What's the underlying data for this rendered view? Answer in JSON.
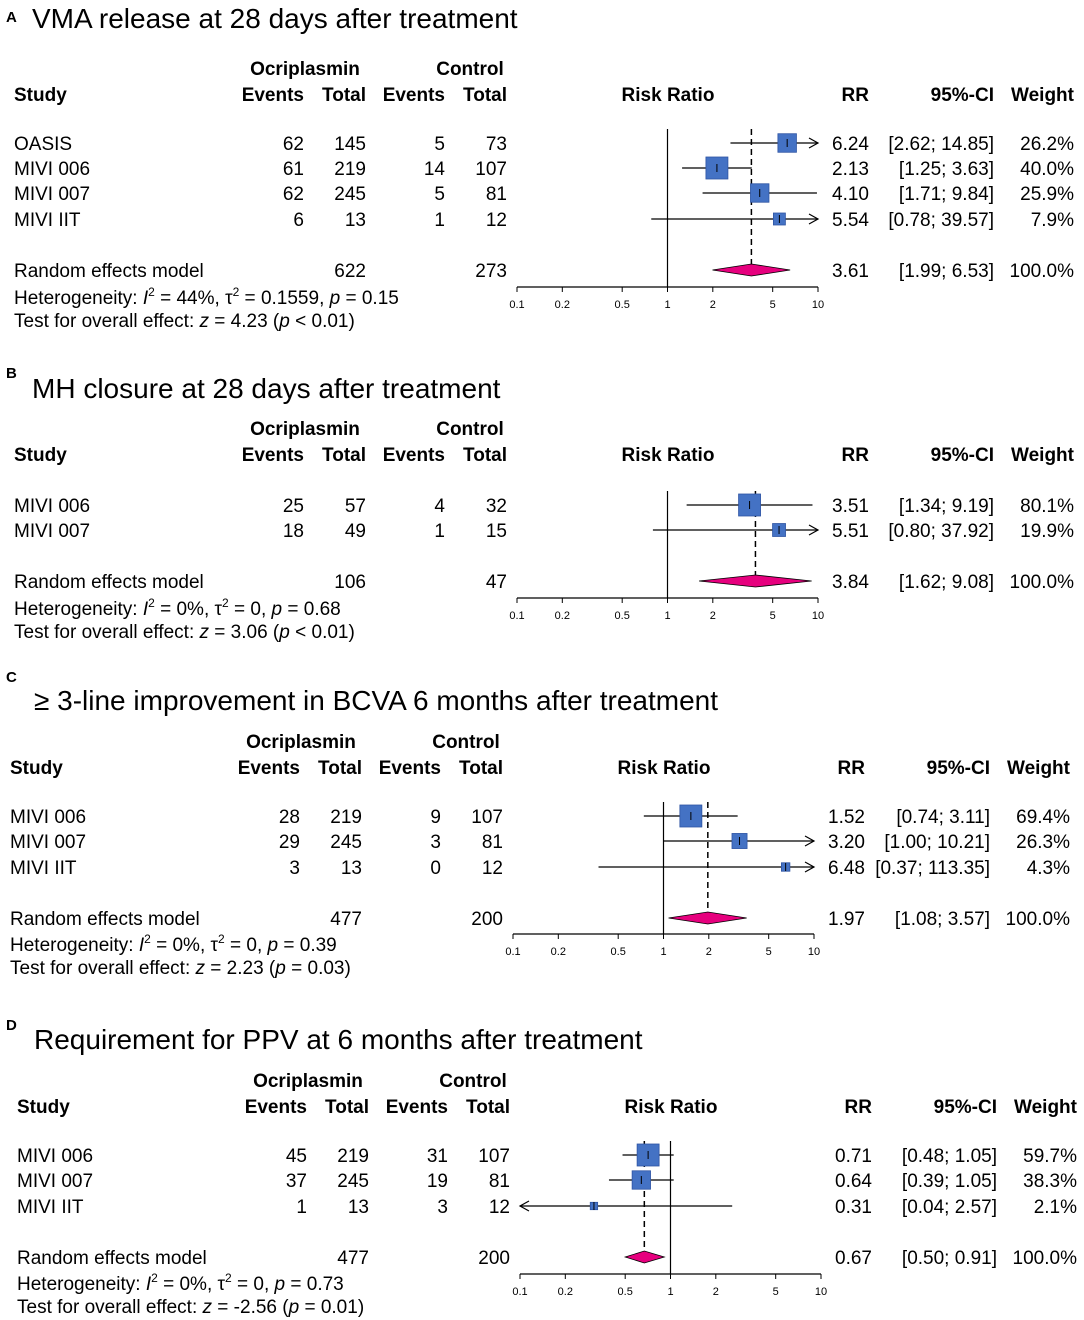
{
  "chart_data": [
    {
      "type": "forest",
      "panel_letter": "A",
      "title": "VMA release at 28 days after treatment",
      "headers": {
        "study": "Study",
        "ocriplasmin": "Ocriplasmin",
        "control": "Control",
        "events": "Events",
        "total": "Total",
        "risk_ratio": "Risk Ratio",
        "rr": "RR",
        "ci": "95%-CI",
        "weight": "Weight"
      },
      "x_axis": {
        "scale": "log",
        "ticks": [
          0.1,
          0.2,
          0.5,
          1,
          2,
          5,
          10
        ],
        "tick_labels": [
          "0.1",
          "0.2",
          "0.5",
          "1",
          "2",
          "5",
          "10"
        ],
        "range": [
          0.1,
          10
        ]
      },
      "studies": [
        {
          "name": "OASIS",
          "ev_t": "62",
          "tot_t": "145",
          "ev_c": "5",
          "tot_c": "73",
          "rr": 6.24,
          "lo": 2.62,
          "hi": 14.85,
          "weight": 26.2,
          "rr_text": "6.24",
          "ci_text": "[2.62; 14.85]",
          "w_text": "26.2%"
        },
        {
          "name": "MIVI 006",
          "ev_t": "61",
          "tot_t": "219",
          "ev_c": "14",
          "tot_c": "107",
          "rr": 2.13,
          "lo": 1.25,
          "hi": 3.63,
          "weight": 40.0,
          "rr_text": "2.13",
          "ci_text": "[1.25; 3.63]",
          "w_text": "40.0%"
        },
        {
          "name": "MIVI 007",
          "ev_t": "62",
          "tot_t": "245",
          "ev_c": "5",
          "tot_c": "81",
          "rr": 4.1,
          "lo": 1.71,
          "hi": 9.84,
          "weight": 25.9,
          "rr_text": "4.10",
          "ci_text": "[1.71; 9.84]",
          "w_text": "25.9%"
        },
        {
          "name": "MIVI IIT",
          "ev_t": "6",
          "tot_t": "13",
          "ev_c": "1",
          "tot_c": "12",
          "rr": 5.54,
          "lo": 0.78,
          "hi": 39.57,
          "weight": 7.9,
          "rr_text": "5.54",
          "ci_text": "[0.78; 39.57]",
          "w_text": "7.9%"
        }
      ],
      "model": {
        "name": "Random effects model",
        "tot_t": "622",
        "tot_c": "273",
        "rr": 3.61,
        "lo": 1.99,
        "hi": 6.53,
        "rr_text": "3.61",
        "ci_text": "[1.99; 6.53]",
        "w_text": "100.0%"
      },
      "heterogeneity": {
        "label": "Heterogeneity: ",
        "i2": "44%",
        "tau2": "0.1559",
        "p": "0.15"
      },
      "overall": {
        "label": "Test for overall effect: ",
        "z": "4.23",
        "p": "< 0.01"
      }
    },
    {
      "type": "forest",
      "panel_letter": "B",
      "title": "MH closure at 28 days after treatment",
      "headers": {
        "study": "Study",
        "ocriplasmin": "Ocriplasmin",
        "control": "Control",
        "events": "Events",
        "total": "Total",
        "risk_ratio": "Risk Ratio",
        "rr": "RR",
        "ci": "95%-CI",
        "weight": "Weight"
      },
      "x_axis": {
        "scale": "log",
        "ticks": [
          0.1,
          0.2,
          0.5,
          1,
          2,
          5,
          10
        ],
        "tick_labels": [
          "0.1",
          "0.2",
          "0.5",
          "1",
          "2",
          "5",
          "10"
        ],
        "range": [
          0.1,
          10
        ]
      },
      "studies": [
        {
          "name": "MIVI 006",
          "ev_t": "25",
          "tot_t": "57",
          "ev_c": "4",
          "tot_c": "32",
          "rr": 3.51,
          "lo": 1.34,
          "hi": 9.19,
          "weight": 80.1,
          "rr_text": "3.51",
          "ci_text": "[1.34; 9.19]",
          "w_text": "80.1%"
        },
        {
          "name": "MIVI 007",
          "ev_t": "18",
          "tot_t": "49",
          "ev_c": "1",
          "tot_c": "15",
          "rr": 5.51,
          "lo": 0.8,
          "hi": 37.92,
          "weight": 19.9,
          "rr_text": "5.51",
          "ci_text": "[0.80; 37.92]",
          "w_text": "19.9%"
        }
      ],
      "model": {
        "name": "Random effects model",
        "tot_t": "106",
        "tot_c": "47",
        "rr": 3.84,
        "lo": 1.62,
        "hi": 9.08,
        "rr_text": "3.84",
        "ci_text": "[1.62; 9.08]",
        "w_text": "100.0%"
      },
      "heterogeneity": {
        "label": "Heterogeneity: ",
        "i2": "0%",
        "tau2": "0",
        "p": "0.68"
      },
      "overall": {
        "label": "Test for overall effect: ",
        "z": "3.06",
        "p": "< 0.01"
      }
    },
    {
      "type": "forest",
      "panel_letter": "C",
      "title": "≥ 3-line improvement in BCVA 6 months after treatment",
      "headers": {
        "study": "Study",
        "ocriplasmin": "Ocriplasmin",
        "control": "Control",
        "events": "Events",
        "total": "Total",
        "risk_ratio": "Risk Ratio",
        "rr": "RR",
        "ci": "95%-CI",
        "weight": "Weight"
      },
      "x_axis": {
        "scale": "log",
        "ticks": [
          0.1,
          0.2,
          0.5,
          1,
          2,
          5,
          10
        ],
        "tick_labels": [
          "0.1",
          "0.2",
          "0.5",
          "1",
          "2",
          "5",
          "10"
        ],
        "range": [
          0.1,
          10
        ]
      },
      "studies": [
        {
          "name": "MIVI 006",
          "ev_t": "28",
          "tot_t": "219",
          "ev_c": "9",
          "tot_c": "107",
          "rr": 1.52,
          "lo": 0.74,
          "hi": 3.11,
          "weight": 69.4,
          "rr_text": "1.52",
          "ci_text": "[0.74; 3.11]",
          "w_text": "69.4%"
        },
        {
          "name": "MIVI 007",
          "ev_t": "29",
          "tot_t": "245",
          "ev_c": "3",
          "tot_c": "81",
          "rr": 3.2,
          "lo": 1.0,
          "hi": 10.21,
          "weight": 26.3,
          "rr_text": "3.20",
          "ci_text": "[1.00; 10.21]",
          "w_text": "26.3%"
        },
        {
          "name": "MIVI IIT",
          "ev_t": "3",
          "tot_t": "13",
          "ev_c": "0",
          "tot_c": "12",
          "rr": 6.48,
          "lo": 0.37,
          "hi": 113.35,
          "weight": 4.3,
          "rr_text": "6.48",
          "ci_text": "[0.37; 113.35]",
          "w_text": "4.3%"
        }
      ],
      "model": {
        "name": "Random effects model",
        "tot_t": "477",
        "tot_c": "200",
        "rr": 1.97,
        "lo": 1.08,
        "hi": 3.57,
        "rr_text": "1.97",
        "ci_text": "[1.08; 3.57]",
        "w_text": "100.0%"
      },
      "heterogeneity": {
        "label": "Heterogeneity: ",
        "i2": "0%",
        "tau2": "0",
        "p": "0.39"
      },
      "overall": {
        "label": "Test for overall effect: ",
        "z": "2.23",
        "p": "= 0.03"
      }
    },
    {
      "type": "forest",
      "panel_letter": "D",
      "title": "Requirement for PPV at 6 months after treatment",
      "headers": {
        "study": "Study",
        "ocriplasmin": "Ocriplasmin",
        "control": "Control",
        "events": "Events",
        "total": "Total",
        "risk_ratio": "Risk Ratio",
        "rr": "RR",
        "ci": "95%-CI",
        "weight": "Weight"
      },
      "x_axis": {
        "scale": "log",
        "ticks": [
          0.1,
          0.2,
          0.5,
          1,
          2,
          5,
          10
        ],
        "tick_labels": [
          "0.1",
          "0.2",
          "0.5",
          "1",
          "2",
          "5",
          "10"
        ],
        "range": [
          0.1,
          10
        ]
      },
      "studies": [
        {
          "name": "MIVI 006",
          "ev_t": "45",
          "tot_t": "219",
          "ev_c": "31",
          "tot_c": "107",
          "rr": 0.71,
          "lo": 0.48,
          "hi": 1.05,
          "weight": 59.7,
          "rr_text": "0.71",
          "ci_text": "[0.48; 1.05]",
          "w_text": "59.7%"
        },
        {
          "name": "MIVI 007",
          "ev_t": "37",
          "tot_t": "245",
          "ev_c": "19",
          "tot_c": "81",
          "rr": 0.64,
          "lo": 0.39,
          "hi": 1.05,
          "weight": 38.3,
          "rr_text": "0.64",
          "ci_text": "[0.39; 1.05]",
          "w_text": "38.3%"
        },
        {
          "name": "MIVI IIT",
          "ev_t": "1",
          "tot_t": "13",
          "ev_c": "3",
          "tot_c": "12",
          "rr": 0.31,
          "lo": 0.04,
          "hi": 2.57,
          "weight": 2.1,
          "rr_text": "0.31",
          "ci_text": "[0.04; 2.57]",
          "w_text": "2.1%"
        }
      ],
      "model": {
        "name": "Random effects model",
        "tot_t": "477",
        "tot_c": "200",
        "rr": 0.67,
        "lo": 0.5,
        "hi": 0.91,
        "rr_text": "0.67",
        "ci_text": "[0.50; 0.91]",
        "w_text": "100.0%"
      },
      "heterogeneity": {
        "label": "Heterogeneity: ",
        "i2": "0%",
        "tau2": "0",
        "p": "0.73"
      },
      "overall": {
        "label": "Test for overall effect: ",
        "z": "-2.56",
        "p": "= 0.01"
      }
    }
  ],
  "colors": {
    "square": "#4472c4",
    "square_stroke": "#2f55a4",
    "diamond": "#e6007e",
    "line": "#000000"
  }
}
